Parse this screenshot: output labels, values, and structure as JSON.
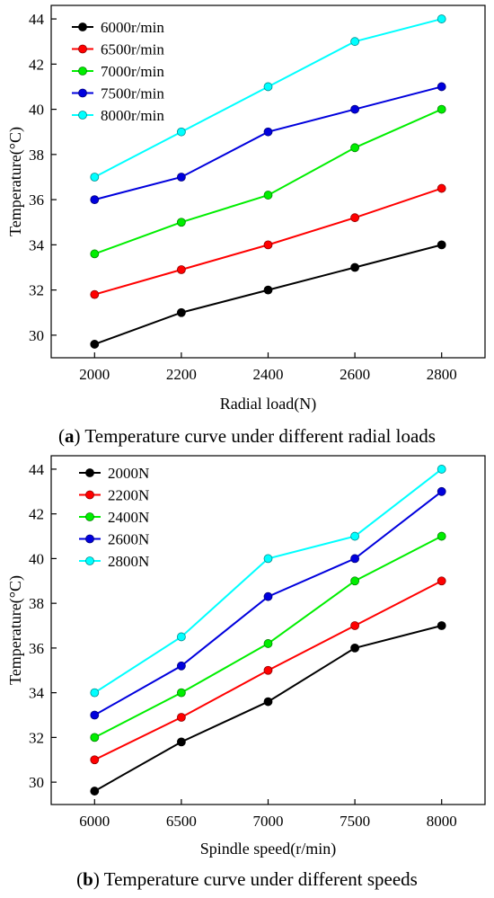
{
  "chart_data": [
    {
      "type": "line",
      "x": [
        2000,
        2200,
        2400,
        2600,
        2800
      ],
      "xlabel": "Radial load(N)",
      "ylabel": "Temperature(°C)",
      "xlim": [
        1900,
        2900
      ],
      "ylim": [
        29,
        44.6
      ],
      "xticks": [
        "2000",
        "2200",
        "2400",
        "2600",
        "2800"
      ],
      "yticks": [
        "30",
        "32",
        "34",
        "36",
        "38",
        "40",
        "42",
        "44"
      ],
      "legend_position": "top-left",
      "grid": false,
      "caption_label": "a",
      "caption_text": "Temperature curve under different radial loads",
      "series": [
        {
          "name": "6000r/min",
          "color": "#000000",
          "values": [
            29.6,
            31.0,
            32.0,
            33.0,
            34.0
          ]
        },
        {
          "name": "6500r/min",
          "color": "#ff0000",
          "values": [
            31.8,
            32.9,
            34.0,
            35.2,
            36.5
          ]
        },
        {
          "name": "7000r/min",
          "color": "#00ee00",
          "values": [
            33.6,
            35.0,
            36.2,
            38.3,
            40.0
          ]
        },
        {
          "name": "7500r/min",
          "color": "#0000dd",
          "values": [
            36.0,
            37.0,
            39.0,
            40.0,
            41.0
          ]
        },
        {
          "name": "8000r/min",
          "color": "#00ffff",
          "values": [
            37.0,
            39.0,
            41.0,
            43.0,
            44.0
          ]
        }
      ]
    },
    {
      "type": "line",
      "x": [
        6000,
        6500,
        7000,
        7500,
        8000
      ],
      "xlabel": "Spindle speed(r/min)",
      "ylabel": "Temperature(°C)",
      "xlim": [
        5750,
        8250
      ],
      "ylim": [
        29,
        44.6
      ],
      "xticks": [
        "6000",
        "6500",
        "7000",
        "7500",
        "8000"
      ],
      "yticks": [
        "30",
        "32",
        "34",
        "36",
        "38",
        "40",
        "42",
        "44"
      ],
      "legend_position": "top-left",
      "grid": false,
      "caption_label": "b",
      "caption_text": "Temperature curve under different speeds",
      "series": [
        {
          "name": "2000N",
          "color": "#000000",
          "values": [
            29.6,
            31.8,
            33.6,
            36.0,
            37.0
          ]
        },
        {
          "name": "2200N",
          "color": "#ff0000",
          "values": [
            31.0,
            32.9,
            35.0,
            37.0,
            39.0
          ]
        },
        {
          "name": "2400N",
          "color": "#00ee00",
          "values": [
            32.0,
            34.0,
            36.2,
            39.0,
            41.0
          ]
        },
        {
          "name": "2600N",
          "color": "#0000dd",
          "values": [
            33.0,
            35.2,
            38.3,
            40.0,
            43.0
          ]
        },
        {
          "name": "2800N",
          "color": "#00ffff",
          "values": [
            34.0,
            36.5,
            40.0,
            41.0,
            44.0
          ]
        }
      ]
    }
  ]
}
